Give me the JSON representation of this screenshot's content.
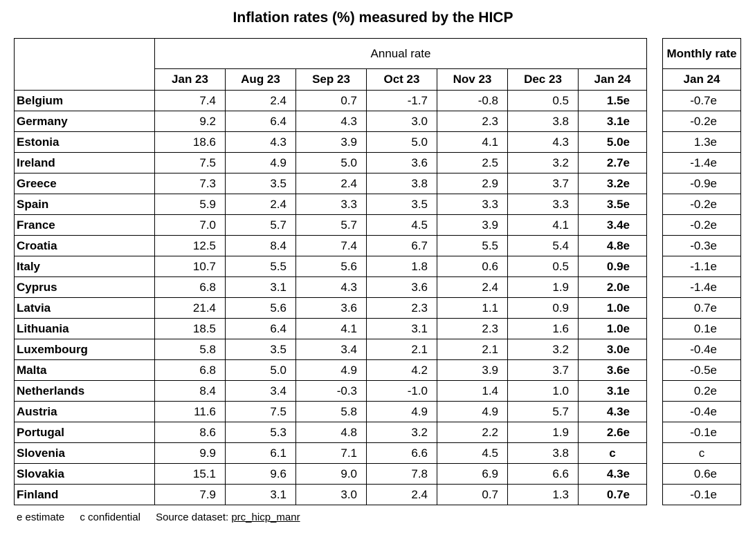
{
  "title": "Inflation rates (%) measured by the HICP",
  "annual_header": "Annual rate",
  "monthly_header": "Monthly rate",
  "columns": [
    "Jan 23",
    "Aug 23",
    "Sep 23",
    "Oct 23",
    "Nov 23",
    "Dec 23",
    "Jan 24"
  ],
  "monthly_column": "Jan 24",
  "rows": [
    {
      "country": "Belgium",
      "values": [
        "7.4",
        "2.4",
        "0.7",
        "-1.7",
        "-0.8",
        "0.5",
        "1.5e"
      ],
      "monthly": "-0.7e"
    },
    {
      "country": "Germany",
      "values": [
        "9.2",
        "6.4",
        "4.3",
        "3.0",
        "2.3",
        "3.8",
        "3.1e"
      ],
      "monthly": "-0.2e"
    },
    {
      "country": "Estonia",
      "values": [
        "18.6",
        "4.3",
        "3.9",
        "5.0",
        "4.1",
        "4.3",
        "5.0e"
      ],
      "monthly": "1.3e"
    },
    {
      "country": "Ireland",
      "values": [
        "7.5",
        "4.9",
        "5.0",
        "3.6",
        "2.5",
        "3.2",
        "2.7e"
      ],
      "monthly": "-1.4e"
    },
    {
      "country": "Greece",
      "values": [
        "7.3",
        "3.5",
        "2.4",
        "3.8",
        "2.9",
        "3.7",
        "3.2e"
      ],
      "monthly": "-0.9e"
    },
    {
      "country": "Spain",
      "values": [
        "5.9",
        "2.4",
        "3.3",
        "3.5",
        "3.3",
        "3.3",
        "3.5e"
      ],
      "monthly": "-0.2e"
    },
    {
      "country": "France",
      "values": [
        "7.0",
        "5.7",
        "5.7",
        "4.5",
        "3.9",
        "4.1",
        "3.4e"
      ],
      "monthly": "-0.2e"
    },
    {
      "country": "Croatia",
      "values": [
        "12.5",
        "8.4",
        "7.4",
        "6.7",
        "5.5",
        "5.4",
        "4.8e"
      ],
      "monthly": "-0.3e"
    },
    {
      "country": "Italy",
      "values": [
        "10.7",
        "5.5",
        "5.6",
        "1.8",
        "0.6",
        "0.5",
        "0.9e"
      ],
      "monthly": "-1.1e"
    },
    {
      "country": "Cyprus",
      "values": [
        "6.8",
        "3.1",
        "4.3",
        "3.6",
        "2.4",
        "1.9",
        "2.0e"
      ],
      "monthly": "-1.4e"
    },
    {
      "country": "Latvia",
      "values": [
        "21.4",
        "5.6",
        "3.6",
        "2.3",
        "1.1",
        "0.9",
        "1.0e"
      ],
      "monthly": "0.7e"
    },
    {
      "country": "Lithuania",
      "values": [
        "18.5",
        "6.4",
        "4.1",
        "3.1",
        "2.3",
        "1.6",
        "1.0e"
      ],
      "monthly": "0.1e"
    },
    {
      "country": "Luxembourg",
      "values": [
        "5.8",
        "3.5",
        "3.4",
        "2.1",
        "2.1",
        "3.2",
        "3.0e"
      ],
      "monthly": "-0.4e"
    },
    {
      "country": "Malta",
      "values": [
        "6.8",
        "5.0",
        "4.9",
        "4.2",
        "3.9",
        "3.7",
        "3.6e"
      ],
      "monthly": "-0.5e"
    },
    {
      "country": "Netherlands",
      "values": [
        "8.4",
        "3.4",
        "-0.3",
        "-1.0",
        "1.4",
        "1.0",
        "3.1e"
      ],
      "monthly": "0.2e"
    },
    {
      "country": "Austria",
      "values": [
        "11.6",
        "7.5",
        "5.8",
        "4.9",
        "4.9",
        "5.7",
        "4.3e"
      ],
      "monthly": "-0.4e"
    },
    {
      "country": "Portugal",
      "values": [
        "8.6",
        "5.3",
        "4.8",
        "3.2",
        "2.2",
        "1.9",
        "2.6e"
      ],
      "monthly": "-0.1e"
    },
    {
      "country": "Slovenia",
      "values": [
        "9.9",
        "6.1",
        "7.1",
        "6.6",
        "4.5",
        "3.8",
        "c"
      ],
      "monthly": "c"
    },
    {
      "country": "Slovakia",
      "values": [
        "15.1",
        "9.6",
        "9.0",
        "7.8",
        "6.9",
        "6.6",
        "4.3e"
      ],
      "monthly": "0.6e"
    },
    {
      "country": "Finland",
      "values": [
        "7.9",
        "3.1",
        "3.0",
        "2.4",
        "0.7",
        "1.3",
        "0.7e"
      ],
      "monthly": "-0.1e"
    }
  ],
  "footer": {
    "estimate": "e estimate",
    "confidential": "c confidential",
    "source_label": "Source dataset: ",
    "source_name": "prc_hicp_manr"
  }
}
